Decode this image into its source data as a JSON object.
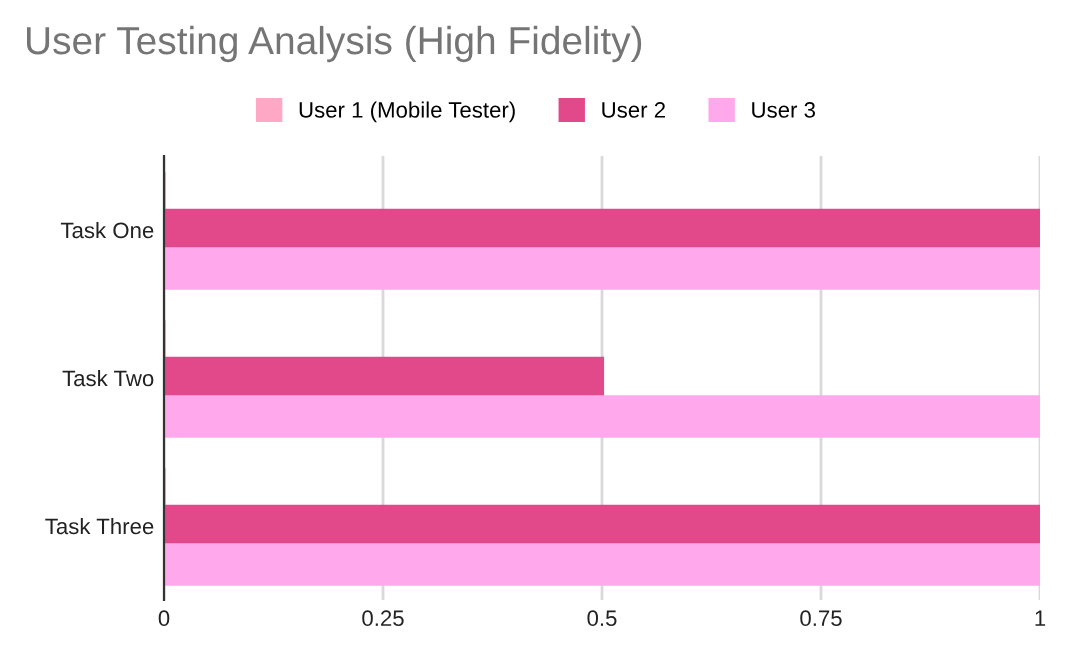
{
  "chart_data": {
    "type": "bar",
    "orientation": "horizontal",
    "title": "User Testing Analysis (High Fidelity)",
    "categories": [
      "Task One",
      "Task Two",
      "Task Three"
    ],
    "series": [
      {
        "name": "User 1 (Mobile Tester)",
        "color": "#ffa8c5",
        "values": [
          0,
          0,
          0
        ]
      },
      {
        "name": "User 2",
        "color": "#e2498a",
        "values": [
          1,
          0.5,
          1
        ]
      },
      {
        "name": "User 3",
        "color": "#ffa8ec",
        "values": [
          1,
          1,
          1
        ]
      }
    ],
    "xlim": [
      0,
      1
    ],
    "xticks": [
      0,
      0.25,
      0.5,
      0.75,
      1
    ],
    "grid": "x",
    "legend": "top"
  }
}
